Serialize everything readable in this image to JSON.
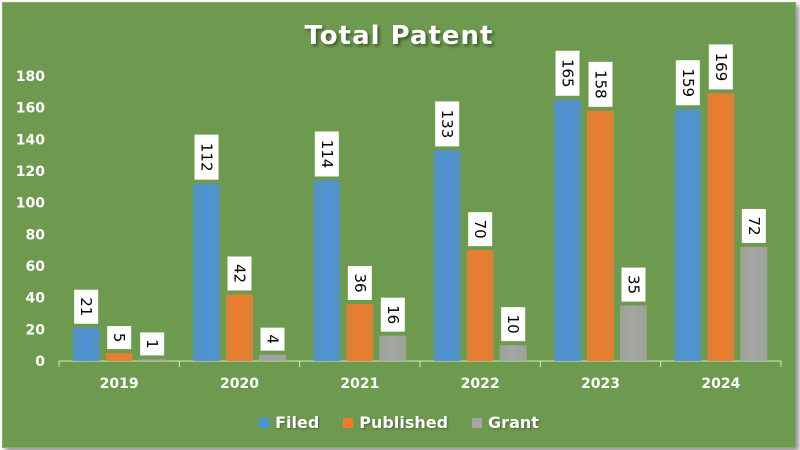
{
  "chart_data": {
    "type": "bar",
    "title": "Total Patent",
    "categories": [
      "2019",
      "2020",
      "2021",
      "2022",
      "2023",
      "2024"
    ],
    "series": [
      {
        "name": "Filed",
        "values": [
          21,
          112,
          114,
          133,
          165,
          159
        ],
        "color": "#4f92d6"
      },
      {
        "name": "Published",
        "values": [
          5,
          42,
          36,
          70,
          158,
          169
        ],
        "color": "#ee7d31"
      },
      {
        "name": "Grant",
        "values": [
          1,
          4,
          16,
          10,
          35,
          72
        ],
        "color": "#a5a5a5"
      }
    ],
    "ylim": [
      0,
      180
    ],
    "yticks": [
      0,
      20,
      40,
      60,
      80,
      100,
      120,
      140,
      160,
      180
    ],
    "grid": false,
    "legend": "bottom"
  },
  "colors": {
    "background": "#6e9a4f",
    "text": "#ffffff",
    "label_box": "#ffffff",
    "label_text": "#000000"
  }
}
